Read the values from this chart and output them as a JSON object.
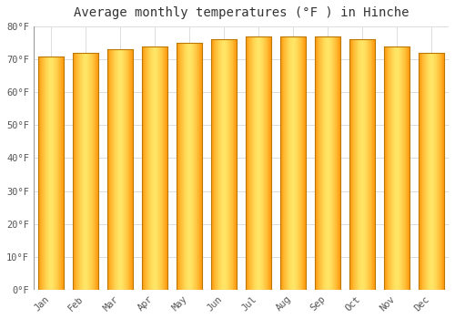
{
  "title": "Average monthly temperatures (°F ) in Hinche",
  "months": [
    "Jan",
    "Feb",
    "Mar",
    "Apr",
    "May",
    "Jun",
    "Jul",
    "Aug",
    "Sep",
    "Oct",
    "Nov",
    "Dec"
  ],
  "values": [
    71,
    72,
    73,
    74,
    75,
    76,
    77,
    77,
    77,
    76,
    74,
    72
  ],
  "background_color": "#FFFFFF",
  "plot_bg_color": "#FFFFFF",
  "grid_color": "#DDDDDD",
  "ylim": [
    0,
    80
  ],
  "yticks": [
    0,
    10,
    20,
    30,
    40,
    50,
    60,
    70,
    80
  ],
  "ytick_labels": [
    "0°F",
    "10°F",
    "20°F",
    "30°F",
    "40°F",
    "50°F",
    "60°F",
    "70°F",
    "80°F"
  ],
  "title_fontsize": 10,
  "tick_fontsize": 7.5,
  "bar_border_color": "#CC8800",
  "bar_center_color": "#FFD966",
  "bar_edge_color": "#FFA500",
  "title_font_family": "monospace",
  "bar_width": 0.72
}
